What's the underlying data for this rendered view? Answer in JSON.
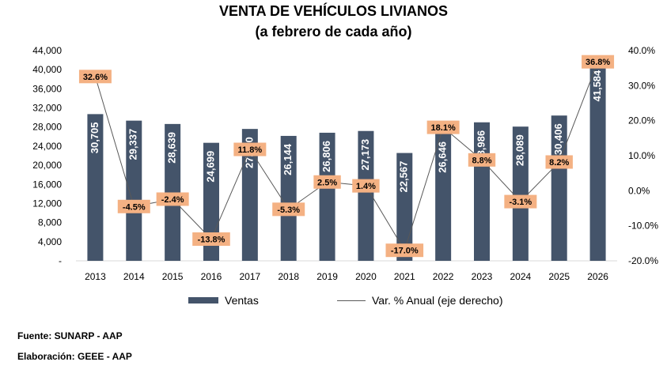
{
  "chart_data": {
    "type": "bar",
    "title": "VENTA DE VEHÍCULOS LIVIANOS",
    "subtitle": "(a febrero de cada año)",
    "categories": [
      "2013",
      "2014",
      "2015",
      "2016",
      "2017",
      "2018",
      "2019",
      "2020",
      "2021",
      "2022",
      "2023",
      "2024",
      "2025",
      "2026"
    ],
    "series": [
      {
        "name": "Ventas",
        "type": "bar",
        "axis": "left",
        "values": [
          30705,
          29337,
          28639,
          24699,
          27600,
          26144,
          26806,
          27173,
          22567,
          26646,
          28986,
          28089,
          30406,
          41584
        ],
        "labels": [
          "30,705",
          "29,337",
          "28,639",
          "24,699",
          "27,600",
          "26,144",
          "26,806",
          "27,173",
          "22,567",
          "26,646",
          "28,986",
          "28,089",
          "30,406",
          "41,584"
        ],
        "color": "#44546a"
      },
      {
        "name": "Var. % Anual (eje derecho)",
        "type": "line",
        "axis": "right",
        "values": [
          32.6,
          -4.5,
          -2.4,
          -13.8,
          11.8,
          -5.3,
          2.5,
          1.4,
          -17.0,
          18.1,
          8.8,
          -3.1,
          8.2,
          36.8
        ],
        "labels": [
          "32.6%",
          "-4.5%",
          "-2.4%",
          "-13.8%",
          "11.8%",
          "-5.3%",
          "2.5%",
          "1.4%",
          "-17.0%",
          "18.1%",
          "8.8%",
          "-3.1%",
          "8.2%",
          "36.8%"
        ],
        "color": "#595959",
        "label_bg": "#f4b183"
      }
    ],
    "y_left": {
      "min": 0,
      "max": 44000,
      "ticks": [
        "-",
        "4,000",
        "8,000",
        "12,000",
        "16,000",
        "20,000",
        "24,000",
        "28,000",
        "32,000",
        "36,000",
        "40,000",
        "44,000"
      ]
    },
    "y_right": {
      "min": -20,
      "max": 40,
      "ticks": [
        "-20.0%",
        "-10.0%",
        "0.0%",
        "10.0%",
        "20.0%",
        "30.0%",
        "40.0%"
      ]
    },
    "grid": false,
    "legend": "bottom"
  },
  "notes": {
    "fuente": "Fuente: SUNARP - AAP",
    "elaboracion": "Elaboración: GEEE - AAP"
  }
}
